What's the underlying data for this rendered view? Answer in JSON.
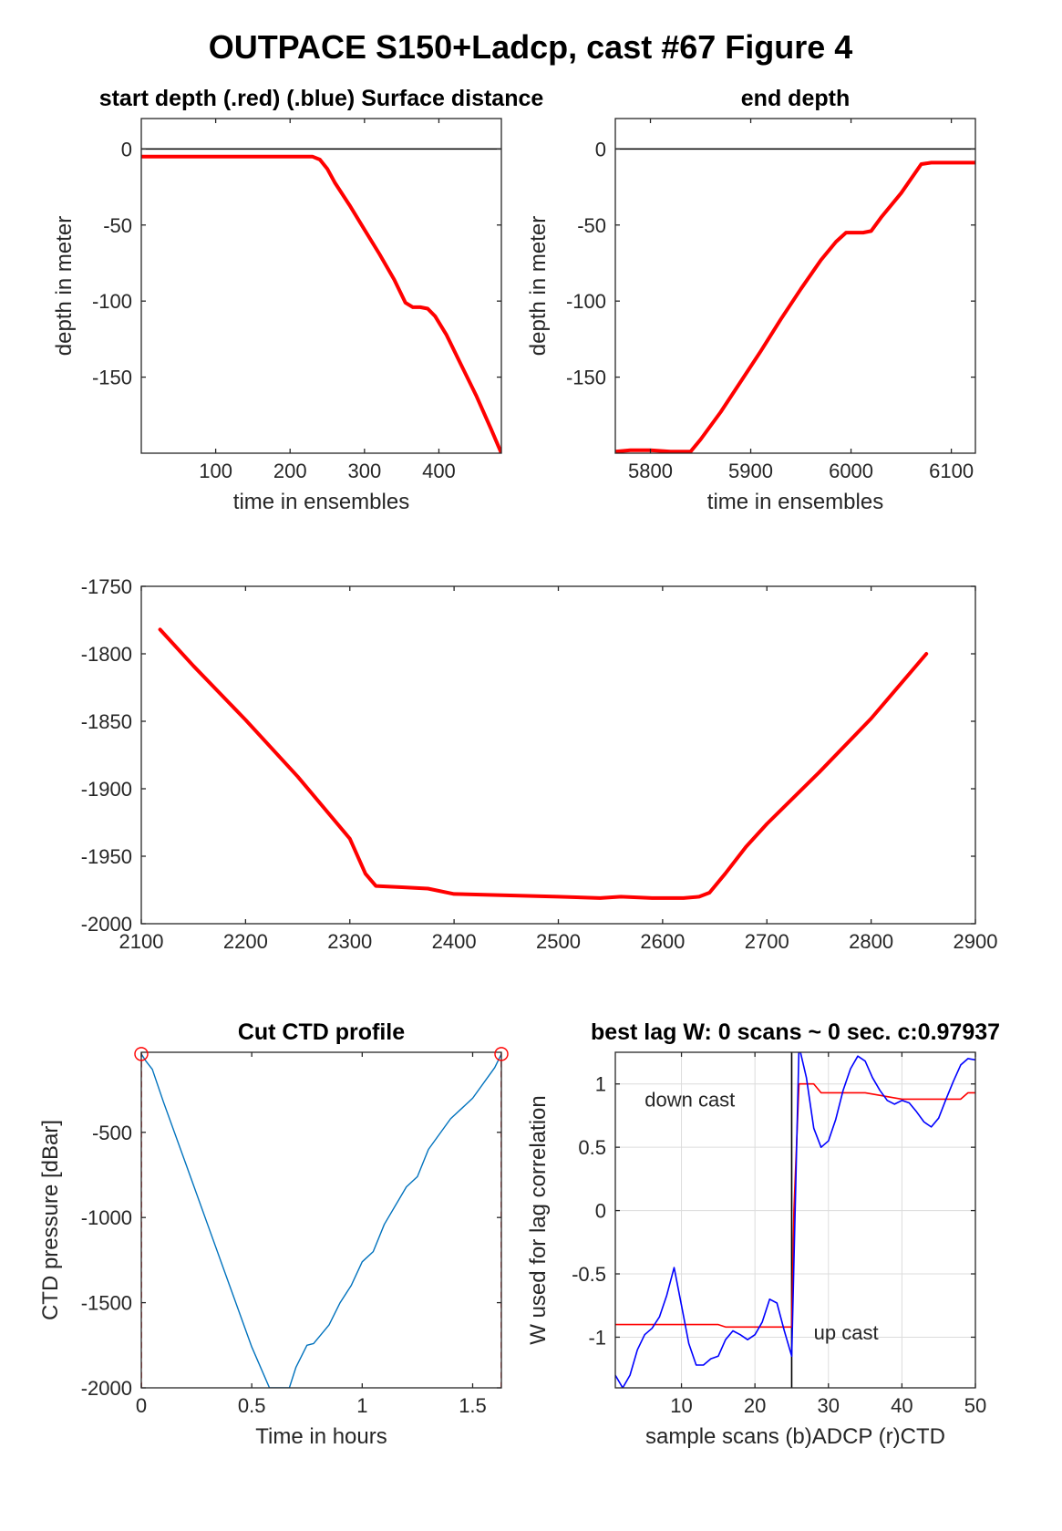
{
  "figure_title": "OUTPACE S150+Ladcp, cast #67    Figure 4",
  "chart_data": [
    {
      "id": "start",
      "type": "line",
      "title": "start depth (.red) (.blue) Surface distance",
      "xlabel": "time in ensembles",
      "ylabel": "depth in meter",
      "xlim": [
        0,
        484
      ],
      "ylim": [
        -200,
        20
      ],
      "xticks": [
        100,
        200,
        300,
        400
      ],
      "yticks": [
        0,
        -50,
        -100,
        -150
      ],
      "grid": false,
      "hlines": [
        {
          "y": 0,
          "color": "#000000"
        }
      ],
      "series": [
        {
          "color": "#ff0000",
          "x": [
            0,
            100,
            200,
            230,
            240,
            250,
            260,
            280,
            300,
            320,
            340,
            355,
            365,
            375,
            385,
            395,
            410,
            430,
            450,
            470,
            484
          ],
          "y": [
            -5,
            -5,
            -5,
            -5,
            -7,
            -13,
            -22,
            -37,
            -53,
            -69,
            -86,
            -101,
            -104,
            -104,
            -105,
            -110,
            -122,
            -142,
            -162,
            -184,
            -200
          ]
        }
      ]
    },
    {
      "id": "end",
      "type": "line",
      "title": "end depth",
      "xlabel": "time in ensembles",
      "ylabel": "depth in meter",
      "xlim": [
        5765,
        6124
      ],
      "ylim": [
        -200,
        20
      ],
      "xticks": [
        5800,
        5900,
        6000,
        6100
      ],
      "yticks": [
        0,
        -50,
        -100,
        -150
      ],
      "grid": false,
      "hlines": [
        {
          "y": 0,
          "color": "#000000"
        }
      ],
      "series": [
        {
          "color": "#ff0000",
          "x": [
            5765,
            5780,
            5800,
            5820,
            5840,
            5850,
            5870,
            5890,
            5910,
            5930,
            5950,
            5970,
            5985,
            5995,
            6005,
            6012,
            6020,
            6030,
            6050,
            6070,
            6080,
            6100,
            6124
          ],
          "y": [
            -199,
            -198,
            -198,
            -199,
            -199,
            -191,
            -173,
            -153,
            -133,
            -112,
            -92,
            -73,
            -61,
            -55,
            -55,
            -55,
            -54,
            -45,
            -29,
            -10,
            -9,
            -9,
            -9
          ]
        }
      ]
    },
    {
      "id": "bottom",
      "type": "line",
      "title": "",
      "xlabel": "",
      "ylabel": "",
      "xlim": [
        2100,
        2900
      ],
      "ylim": [
        -2000,
        -1750
      ],
      "xticks": [
        2100,
        2200,
        2300,
        2400,
        2500,
        2600,
        2700,
        2800,
        2900
      ],
      "yticks": [
        -1750,
        -1800,
        -1850,
        -1900,
        -1950,
        -2000
      ],
      "grid": false,
      "series": [
        {
          "color": "#ff0000",
          "x": [
            2118,
            2150,
            2200,
            2250,
            2300,
            2315,
            2325,
            2350,
            2375,
            2400,
            2450,
            2500,
            2540,
            2560,
            2590,
            2620,
            2635,
            2645,
            2660,
            2680,
            2700,
            2750,
            2800,
            2853
          ],
          "y": [
            -1782,
            -1809,
            -1849,
            -1891,
            -1937,
            -1963,
            -1972,
            -1973,
            -1974,
            -1978,
            -1979,
            -1980,
            -1981,
            -1980,
            -1981,
            -1981,
            -1980,
            -1977,
            -1963,
            -1943,
            -1926,
            -1888,
            -1848,
            -1800
          ]
        }
      ]
    },
    {
      "id": "ctd",
      "type": "line",
      "title": "Cut CTD profile",
      "xlabel": "Time in hours",
      "ylabel": "CTD pressure [dBar]",
      "xlim": [
        0,
        1.63
      ],
      "ylim": [
        -2000,
        -30
      ],
      "xticks": [
        0,
        0.5,
        1,
        1.5
      ],
      "yticks": [
        -500,
        -1000,
        -1500,
        -2000
      ],
      "grid": false,
      "series": [
        {
          "color": "#0072bd",
          "x": [
            0,
            0.02,
            0.05,
            0.1,
            0.2,
            0.3,
            0.4,
            0.5,
            0.58,
            0.6,
            0.65,
            0.67,
            0.7,
            0.75,
            0.78,
            0.85,
            0.9,
            0.95,
            1.0,
            1.05,
            1.1,
            1.2,
            1.25,
            1.3,
            1.4,
            1.5,
            1.6,
            1.63
          ],
          "y": [
            -40,
            -80,
            -130,
            -320,
            -680,
            -1040,
            -1400,
            -1760,
            -2000,
            -2000,
            -2000,
            -2000,
            -1880,
            -1750,
            -1740,
            -1630,
            -1500,
            -1400,
            -1260,
            -1200,
            -1040,
            -820,
            -760,
            -600,
            -420,
            -300,
            -120,
            -40
          ]
        },
        {
          "color": "#ff0000",
          "dashed": true,
          "x": [
            0,
            0
          ],
          "y": [
            -2000,
            -30
          ]
        },
        {
          "color": "#ff0000",
          "dashed": true,
          "x": [
            1.63,
            1.63
          ],
          "y": [
            -2000,
            -30
          ]
        }
      ],
      "markers": [
        {
          "x": 0,
          "y": -40,
          "color": "#ff0000",
          "shape": "circle"
        },
        {
          "x": 1.63,
          "y": -40,
          "color": "#ff0000",
          "shape": "circle"
        }
      ]
    },
    {
      "id": "lag",
      "type": "line",
      "title": "best lag W: 0 scans ~ 0 sec.  c:0.97937",
      "xlabel": "sample scans (b)ADCP (r)CTD",
      "ylabel": "W used for lag correlation",
      "xlim": [
        1,
        50
      ],
      "ylim": [
        -1.4,
        1.25
      ],
      "xticks": [
        10,
        20,
        30,
        40,
        50
      ],
      "yticks": [
        1,
        0.5,
        0,
        -0.5,
        -1
      ],
      "grid": true,
      "vlines": [
        {
          "x": 25,
          "color": "#000000"
        }
      ],
      "annotations": [
        {
          "text": "down cast",
          "x": 5,
          "y": 0.82
        },
        {
          "text": "up cast",
          "x": 28,
          "y": -1.02
        }
      ],
      "series": [
        {
          "color": "#ff0000",
          "x": [
            1,
            5,
            10,
            15,
            16,
            20,
            24,
            25,
            25.3,
            26,
            28,
            29,
            30,
            35,
            40,
            45,
            48,
            49,
            50
          ],
          "y": [
            -0.9,
            -0.9,
            -0.9,
            -0.9,
            -0.92,
            -0.92,
            -0.92,
            -0.92,
            0.0,
            1.0,
            1.0,
            0.93,
            0.93,
            0.93,
            0.88,
            0.88,
            0.88,
            0.93,
            0.93
          ]
        },
        {
          "color": "#0000ff",
          "x": [
            1,
            2,
            3,
            4,
            5,
            6,
            7,
            8,
            9,
            10,
            11,
            12,
            13,
            14,
            15,
            16,
            17,
            18,
            19,
            20,
            21,
            22,
            23,
            24,
            25,
            26,
            27,
            28,
            29,
            30,
            31,
            32,
            33,
            34,
            35,
            36,
            37,
            38,
            39,
            40,
            41,
            42,
            43,
            44,
            45,
            46,
            47,
            48,
            49,
            50
          ],
          "y": [
            -1.3,
            -1.4,
            -1.3,
            -1.1,
            -0.98,
            -0.93,
            -0.84,
            -0.67,
            -0.45,
            -0.75,
            -1.05,
            -1.22,
            -1.22,
            -1.17,
            -1.15,
            -1.02,
            -0.95,
            -0.98,
            -1.02,
            -0.98,
            -0.88,
            -0.7,
            -0.73,
            -0.95,
            -1.15,
            1.3,
            1.05,
            0.65,
            0.5,
            0.55,
            0.72,
            0.95,
            1.12,
            1.22,
            1.18,
            1.05,
            0.95,
            0.87,
            0.84,
            0.87,
            0.85,
            0.78,
            0.7,
            0.66,
            0.73,
            0.88,
            1.02,
            1.15,
            1.2,
            1.19
          ]
        }
      ]
    }
  ]
}
